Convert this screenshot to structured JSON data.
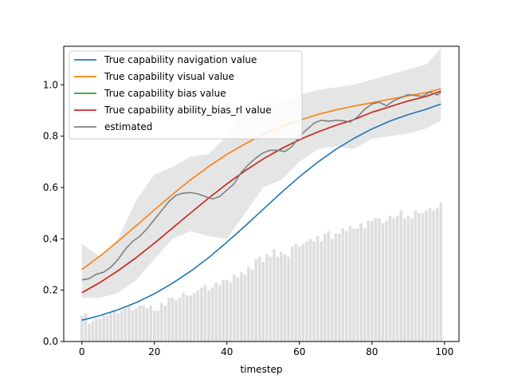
{
  "chart_data": {
    "type": "line",
    "title": "",
    "xlabel": "timestep",
    "ylabel": "",
    "xlim": [
      -5,
      104
    ],
    "ylim": [
      0.0,
      1.15
    ],
    "xticks": [
      0,
      20,
      40,
      60,
      80,
      100
    ],
    "yticks": [
      0.0,
      0.2,
      0.4,
      0.6,
      0.8,
      1.0
    ],
    "xtick_labels": [
      "0",
      "20",
      "40",
      "60",
      "80",
      "100"
    ],
    "ytick_labels": [
      "0.0",
      "0.2",
      "0.4",
      "0.6",
      "0.8",
      "1.0"
    ],
    "grid": false,
    "legend_position": "upper-left",
    "series": [
      {
        "name": "True capability navigation value",
        "color": "#1f77b4",
        "x": [
          0,
          5,
          10,
          15,
          20,
          25,
          30,
          35,
          40,
          45,
          50,
          55,
          60,
          65,
          70,
          75,
          80,
          85,
          90,
          95,
          99
        ],
        "y": [
          0.083,
          0.101,
          0.124,
          0.152,
          0.186,
          0.227,
          0.274,
          0.327,
          0.387,
          0.45,
          0.515,
          0.58,
          0.642,
          0.698,
          0.748,
          0.791,
          0.828,
          0.859,
          0.884,
          0.905,
          0.925
        ]
      },
      {
        "name": "True capability visual value",
        "color": "#ff7f0e",
        "x": [
          0,
          5,
          10,
          15,
          20,
          25,
          30,
          35,
          40,
          45,
          50,
          55,
          60,
          65,
          70,
          75,
          80,
          85,
          90,
          95,
          99
        ],
        "y": [
          0.28,
          0.333,
          0.391,
          0.451,
          0.513,
          0.573,
          0.63,
          0.682,
          0.729,
          0.77,
          0.806,
          0.837,
          0.862,
          0.884,
          0.902,
          0.917,
          0.93,
          0.944,
          0.957,
          0.97,
          0.984
        ]
      },
      {
        "name": "True capability bias value",
        "color": "#2ca02c",
        "x": [
          0,
          5,
          10,
          15,
          20,
          25,
          30,
          35,
          40,
          45,
          50,
          55,
          60,
          65,
          70,
          75,
          80,
          85,
          90,
          95,
          99
        ],
        "y": [
          0.19,
          0.23,
          0.276,
          0.327,
          0.383,
          0.442,
          0.501,
          0.559,
          0.614,
          0.665,
          0.711,
          0.751,
          0.786,
          0.816,
          0.842,
          0.864,
          0.893,
          0.915,
          0.937,
          0.955,
          0.975
        ]
      },
      {
        "name": "True capability ability_bias_rl value",
        "color": "#d62728",
        "x": [
          0,
          5,
          10,
          15,
          20,
          25,
          30,
          35,
          40,
          45,
          50,
          55,
          60,
          65,
          70,
          75,
          80,
          85,
          90,
          95,
          99
        ],
        "y": [
          0.19,
          0.23,
          0.276,
          0.327,
          0.383,
          0.442,
          0.501,
          0.559,
          0.614,
          0.665,
          0.711,
          0.751,
          0.786,
          0.816,
          0.842,
          0.864,
          0.893,
          0.915,
          0.937,
          0.955,
          0.975
        ]
      },
      {
        "name": "estimated",
        "color": "#808080",
        "x": [
          0,
          2,
          4,
          6,
          8,
          10,
          12,
          14,
          16,
          18,
          20,
          22,
          24,
          26,
          28,
          30,
          32,
          34,
          36,
          38,
          40,
          42,
          44,
          46,
          48,
          50,
          52,
          54,
          56,
          58,
          60,
          62,
          64,
          66,
          68,
          70,
          72,
          74,
          76,
          78,
          80,
          82,
          84,
          86,
          88,
          90,
          92,
          94,
          96,
          98,
          99
        ],
        "y": [
          0.24,
          0.245,
          0.262,
          0.27,
          0.29,
          0.32,
          0.36,
          0.39,
          0.41,
          0.44,
          0.475,
          0.51,
          0.545,
          0.57,
          0.578,
          0.58,
          0.575,
          0.565,
          0.555,
          0.565,
          0.59,
          0.615,
          0.66,
          0.69,
          0.715,
          0.735,
          0.745,
          0.745,
          0.74,
          0.76,
          0.8,
          0.825,
          0.85,
          0.862,
          0.858,
          0.862,
          0.86,
          0.855,
          0.875,
          0.905,
          0.925,
          0.932,
          0.918,
          0.938,
          0.95,
          0.962,
          0.958,
          0.955,
          0.972,
          0.96,
          0.97
        ]
      }
    ],
    "band": {
      "name": "estimated-uncertainty",
      "color": "#d3d3d3",
      "x": [
        0,
        5,
        10,
        15,
        20,
        25,
        30,
        35,
        40,
        45,
        50,
        55,
        60,
        65,
        70,
        75,
        80,
        85,
        90,
        95,
        99
      ],
      "lower": [
        0.17,
        0.17,
        0.19,
        0.24,
        0.32,
        0.4,
        0.43,
        0.41,
        0.4,
        0.5,
        0.6,
        0.63,
        0.7,
        0.75,
        0.76,
        0.75,
        0.79,
        0.8,
        0.81,
        0.83,
        0.86
      ],
      "upper": [
        0.38,
        0.33,
        0.4,
        0.55,
        0.65,
        0.68,
        0.72,
        0.73,
        0.8,
        0.92,
        0.93,
        0.93,
        0.96,
        0.98,
        0.99,
        1.0,
        1.02,
        1.04,
        1.06,
        1.08,
        1.14
      ]
    },
    "bars": {
      "name": "sample-fraction",
      "color": "#dedede",
      "x": [
        0,
        1,
        2,
        3,
        4,
        5,
        6,
        7,
        8,
        9,
        10,
        11,
        12,
        13,
        14,
        15,
        16,
        17,
        18,
        19,
        20,
        21,
        22,
        23,
        24,
        25,
        26,
        27,
        28,
        29,
        30,
        31,
        32,
        33,
        34,
        35,
        36,
        37,
        38,
        39,
        40,
        41,
        42,
        43,
        44,
        45,
        46,
        47,
        48,
        49,
        50,
        51,
        52,
        53,
        54,
        55,
        56,
        57,
        58,
        59,
        60,
        61,
        62,
        63,
        64,
        65,
        66,
        67,
        68,
        69,
        70,
        71,
        72,
        73,
        74,
        75,
        76,
        77,
        78,
        79,
        80,
        81,
        82,
        83,
        84,
        85,
        86,
        87,
        88,
        89,
        90,
        91,
        92,
        93,
        94,
        95,
        96,
        97,
        98,
        99
      ],
      "values": [
        0.1,
        0.11,
        0.07,
        0.08,
        0.09,
        0.09,
        0.1,
        0.1,
        0.11,
        0.12,
        0.11,
        0.12,
        0.13,
        0.14,
        0.12,
        0.13,
        0.14,
        0.14,
        0.13,
        0.14,
        0.12,
        0.12,
        0.15,
        0.14,
        0.17,
        0.17,
        0.16,
        0.17,
        0.19,
        0.18,
        0.18,
        0.19,
        0.2,
        0.21,
        0.22,
        0.2,
        0.21,
        0.23,
        0.22,
        0.24,
        0.24,
        0.23,
        0.26,
        0.25,
        0.27,
        0.26,
        0.29,
        0.28,
        0.32,
        0.33,
        0.31,
        0.34,
        0.33,
        0.36,
        0.33,
        0.35,
        0.34,
        0.33,
        0.37,
        0.38,
        0.37,
        0.38,
        0.39,
        0.4,
        0.39,
        0.41,
        0.39,
        0.42,
        0.43,
        0.4,
        0.42,
        0.42,
        0.44,
        0.43,
        0.45,
        0.44,
        0.44,
        0.46,
        0.44,
        0.47,
        0.47,
        0.48,
        0.48,
        0.46,
        0.47,
        0.49,
        0.48,
        0.49,
        0.51,
        0.48,
        0.49,
        0.48,
        0.51,
        0.5,
        0.5,
        0.51,
        0.52,
        0.51,
        0.52,
        0.54
      ]
    }
  }
}
